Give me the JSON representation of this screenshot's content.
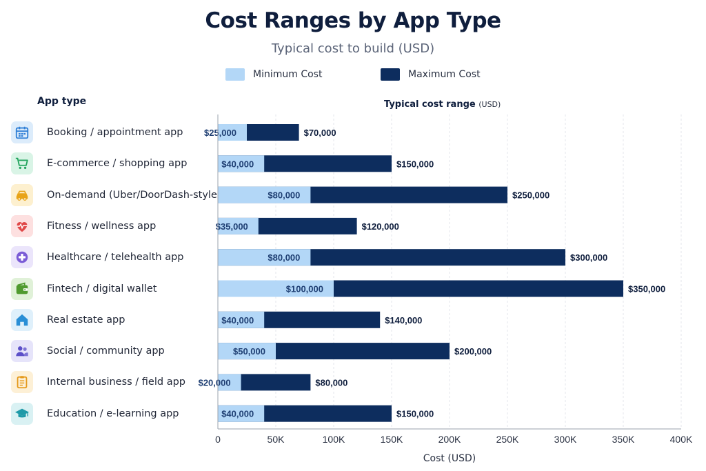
{
  "header": {
    "title": "Cost Ranges by App Type",
    "subtitle": "Typical cost to build (USD)",
    "column_heading": "App type",
    "plot_heading": "Typical cost range",
    "plot_heading_unit": "(USD)"
  },
  "colors": {
    "minimum": "#b3d7f7",
    "maximum": "#0d2d5e",
    "grid": "#e3e6eb",
    "axis": "#9aa1ad"
  },
  "chart_data": {
    "type": "bar",
    "orientation": "horizontal",
    "stacked_range": true,
    "title": "Cost Ranges by App Type",
    "subtitle": "Typical cost to build (USD)",
    "xlabel": "Cost (USD)",
    "ylabel": "App type",
    "xlim": [
      0,
      400000
    ],
    "xticks": [
      0,
      50000,
      100000,
      150000,
      200000,
      250000,
      300000,
      350000,
      400000
    ],
    "xtick_labels": [
      "0",
      "50K",
      "100K",
      "150K",
      "200K",
      "250K",
      "300K",
      "350K",
      "400K"
    ],
    "grid": "vertical dashed",
    "legend_position": "top-center",
    "categories": [
      "Booking / appointment app",
      "E-commerce / shopping app",
      "On-demand (Uber/DoorDash-style)",
      "Fitness / wellness app",
      "Healthcare / telehealth app",
      "Fintech / digital wallet",
      "Real estate app",
      "Social / community app",
      "Internal business / field app",
      "Education / e-learning app"
    ],
    "icons": [
      {
        "name": "calendar-icon",
        "tile": "#dcecfb",
        "color": "#2f7fd6"
      },
      {
        "name": "cart-icon",
        "tile": "#d9f4e6",
        "color": "#22a45d"
      },
      {
        "name": "car-icon",
        "tile": "#fdf0cf",
        "color": "#e8a317"
      },
      {
        "name": "heart-pulse-icon",
        "tile": "#fde0e0",
        "color": "#e04848"
      },
      {
        "name": "medical-cross-icon",
        "tile": "#ebe5fb",
        "color": "#7a5bd6"
      },
      {
        "name": "wallet-icon",
        "tile": "#e0f1d8",
        "color": "#4f9a2f"
      },
      {
        "name": "house-icon",
        "tile": "#dff0fb",
        "color": "#2a8fd6"
      },
      {
        "name": "users-icon",
        "tile": "#e6e4fa",
        "color": "#5b4fc8"
      },
      {
        "name": "clipboard-icon",
        "tile": "#fdf0d6",
        "color": "#e59a1c"
      },
      {
        "name": "graduation-cap-icon",
        "tile": "#d9f1f3",
        "color": "#1f9aa8"
      }
    ],
    "series": [
      {
        "name": "Minimum Cost",
        "values": [
          25000,
          40000,
          80000,
          35000,
          80000,
          100000,
          40000,
          50000,
          20000,
          40000
        ],
        "labels": [
          "$25,000",
          "$40,000",
          "$80,000",
          "$35,000",
          "$80,000",
          "$100,000",
          "$40,000",
          "$50,000",
          "$20,000",
          "$40,000"
        ]
      },
      {
        "name": "Maximum Cost",
        "values": [
          70000,
          150000,
          250000,
          120000,
          300000,
          350000,
          140000,
          200000,
          80000,
          150000
        ],
        "labels": [
          "$70,000",
          "$150,000",
          "$250,000",
          "$120,000",
          "$300,000",
          "$350,000",
          "$140,000",
          "$200,000",
          "$80,000",
          "$150,000"
        ]
      }
    ]
  }
}
